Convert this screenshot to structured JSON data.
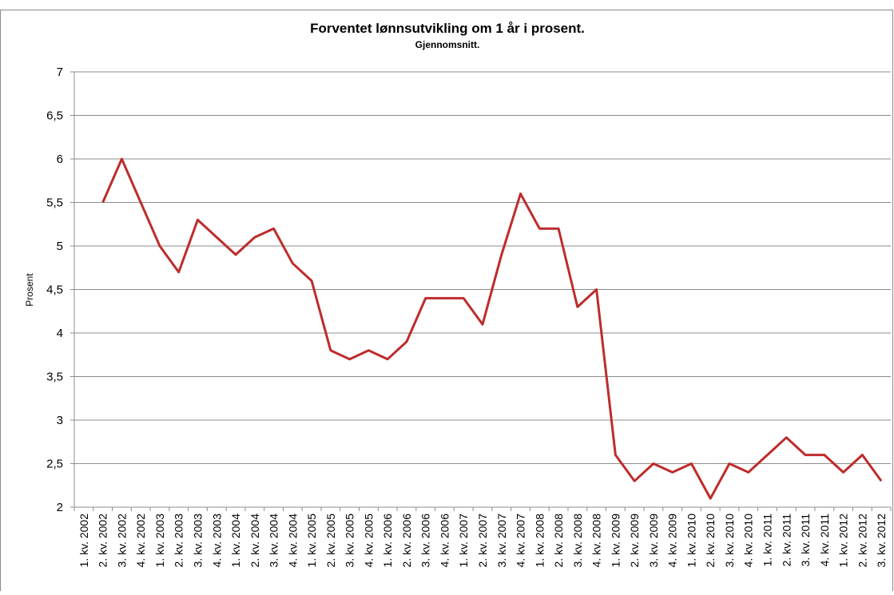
{
  "chart_data": {
    "type": "line",
    "title": "Forventet lønnsutvikling om 1 år i prosent.",
    "subtitle": "Gjennomsnitt.",
    "y_label": "Prosent",
    "categories": [
      "1. kv. 2002",
      "2. kv. 2002",
      "3. kv. 2002",
      "4. kv. 2002",
      "1. kv. 2003",
      "2. kv. 2003",
      "3. kv. 2003",
      "4. kv. 2003",
      "1. kv. 2004",
      "2. kv. 2004",
      "3. kv. 2004",
      "4. kv. 2004",
      "1. kv. 2005",
      "2. kv. 2005",
      "3. kv. 2005",
      "4. kv. 2005",
      "1. kv. 2006",
      "2. kv. 2006",
      "3. kv. 2006",
      "4. kv. 2006",
      "1. kv. 2007",
      "2. kv. 2007",
      "3. kv. 2007",
      "4. kv. 2007",
      "1. kv. 2008",
      "2. kv. 2008",
      "3. kv. 2008",
      "4. kv. 2008",
      "1. kv. 2009",
      "2. kv. 2009",
      "3. kv. 2009",
      "4. kv. 2009",
      "1. kv. 2010",
      "2. kv. 2010",
      "3. kv. 2010",
      "4. kv. 2010",
      "1. kv. 2011",
      "2. kv. 2011",
      "3. kv. 2011",
      "4. kv. 2011",
      "1. kv. 2012",
      "2. kv. 2012",
      "3. kv. 2012"
    ],
    "values": [
      null,
      5.5,
      6.0,
      5.5,
      5.0,
      4.7,
      5.3,
      5.1,
      4.9,
      5.1,
      5.2,
      4.8,
      4.6,
      3.8,
      3.7,
      3.8,
      3.7,
      3.9,
      4.4,
      4.4,
      4.4,
      4.1,
      4.9,
      5.6,
      5.2,
      5.2,
      4.3,
      4.5,
      2.6,
      2.3,
      2.5,
      2.4,
      2.5,
      2.1,
      2.5,
      2.4,
      2.6,
      2.8,
      2.6,
      2.6,
      2.4,
      2.6,
      2.3
    ],
    "color": "#be2c2c",
    "ylim": [
      2,
      7
    ],
    "yticks": [
      2,
      {
        "value": 2.5,
        "label": "2,5"
      },
      3,
      {
        "value": 3.5,
        "label": "3,5"
      },
      4,
      {
        "value": 4.5,
        "label": "4,5"
      },
      5,
      {
        "value": 5.5,
        "label": "5,5"
      },
      6,
      {
        "value": 6.5,
        "label": "6,5"
      },
      7
    ],
    "grid": true
  }
}
